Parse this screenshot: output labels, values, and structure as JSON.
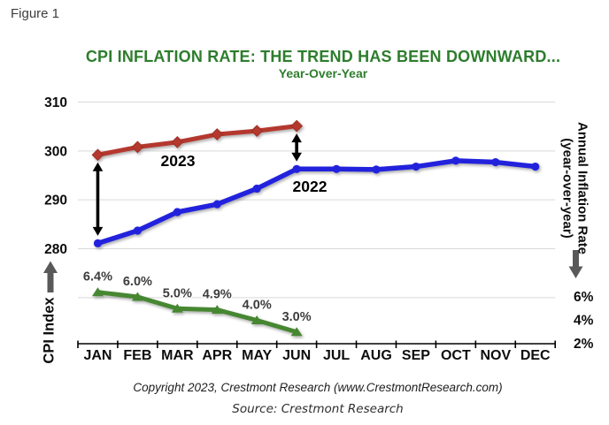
{
  "figure_label": "Figure 1",
  "chart_data": {
    "type": "line",
    "title": "CPI INFLATION RATE: THE TREND HAS BEEN DOWNWARD...",
    "subtitle": "Year-Over-Year",
    "grid": "horizontal",
    "legend": "none",
    "categories": [
      "JAN",
      "FEB",
      "MAR",
      "APR",
      "MAY",
      "JUN",
      "JUL",
      "AUG",
      "SEP",
      "OCT",
      "NOV",
      "DEC"
    ],
    "left_axis": {
      "title": "CPI Index",
      "ticks": [
        310,
        300,
        290,
        280
      ],
      "unlabeled_gridlines": [
        270
      ],
      "range": [
        260.5,
        310
      ]
    },
    "right_axis": {
      "title": [
        "Annual Inflation Rate",
        "(year-over-year)"
      ],
      "ticks": [
        {
          "label": "6%",
          "value": 6
        },
        {
          "label": "4%",
          "value": 4
        },
        {
          "label": "2%",
          "value": 2
        }
      ],
      "range": [
        2,
        6
      ]
    },
    "series": [
      {
        "name": "2023",
        "axis": "left",
        "marker": "diamond",
        "color": "#b4372d",
        "values": [
          299.2,
          300.8,
          301.8,
          303.4,
          304.1,
          305.1
        ]
      },
      {
        "name": "2022",
        "axis": "left",
        "marker": "circle",
        "color": "#2121dd",
        "values": [
          281.1,
          283.7,
          287.5,
          289.1,
          292.3,
          296.3,
          296.3,
          296.2,
          296.8,
          298.0,
          297.7,
          296.8
        ]
      },
      {
        "name": "Annual Inflation Rate",
        "axis": "right",
        "marker": "triangle",
        "color": "#468732",
        "values": [
          6.4,
          6.0,
          5.0,
          4.9,
          4.0,
          3.0
        ],
        "point_labels": [
          "6.4%",
          "6.0%",
          "5.0%",
          "4.9%",
          "4.0%",
          "3.0%"
        ]
      }
    ],
    "annotations": [
      {
        "text": "2023"
      },
      {
        "text": "2022"
      }
    ],
    "gap_arrows": [
      {
        "month": "JAN",
        "month_index": 0
      },
      {
        "month": "JUN",
        "month_index": 5
      }
    ]
  },
  "colors": {
    "title_green": "#2d7d2d",
    "gridline": "#d9d9d9",
    "axis_black": "#000000",
    "direction_arrow_gray": "#595959",
    "point_label_gray": "#3d3d3d"
  },
  "footer": {
    "copyright": "Copyright 2023, Crestmont Research (www.CrestmontResearch.com)",
    "source": "Source: Crestmont Research"
  }
}
